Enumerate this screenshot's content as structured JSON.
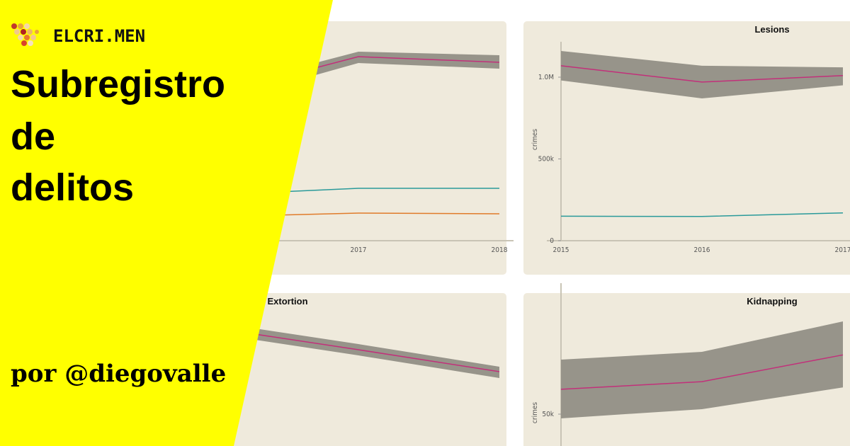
{
  "brand": "ELCRI.MEN",
  "title_lines": [
    "Subregistro",
    "de",
    "delitos"
  ],
  "author": "por @diegovalle",
  "chart_data": [
    {
      "type": "line",
      "categories": [
        null,
        "2017",
        "2018"
      ],
      "ylim": [
        0,
        300
      ],
      "yticks": [],
      "band": {
        "color": "#97948a",
        "upper": [
          215,
          267,
          262
        ],
        "lower": [
          195,
          251,
          243
        ]
      },
      "series": [
        {
          "color": "#c2307a",
          "values": [
            208,
            260,
            252
          ]
        },
        {
          "color": "#2a9a9a",
          "values": [
            65,
            74,
            74
          ]
        },
        {
          "color": "#e07b2a",
          "values": [
            34,
            39,
            38
          ]
        }
      ]
    },
    {
      "type": "line",
      "title": "Lesions",
      "ylabel": "crimes",
      "categories": [
        "2015",
        "2016",
        "2017"
      ],
      "ylim": [
        0,
        1000000
      ],
      "yticks": [
        0,
        {
          "value": 500000,
          "label": "500k"
        },
        {
          "value": 1000000,
          "label": "1.0M"
        }
      ],
      "band": {
        "color": "#97948a",
        "upper": [
          1160000,
          1070000,
          1060000
        ],
        "lower": [
          980000,
          870000,
          950000
        ]
      },
      "series": [
        {
          "color": "#c2307a",
          "values": [
            1070000,
            970000,
            1010000
          ]
        },
        {
          "color": "#2a9a9a",
          "values": [
            150000,
            148000,
            170000
          ]
        }
      ]
    },
    {
      "type": "line",
      "title": "Extortion",
      "categories": [
        null,
        null,
        null
      ],
      "ylim": [
        0,
        100
      ],
      "yticks": [],
      "band": {
        "color": "#97948a",
        "upper": [
          92,
          77,
          61
        ],
        "lower": [
          84,
          69,
          53
        ]
      },
      "series": [
        {
          "color": "#c2307a",
          "values": [
            88,
            73,
            57.5
          ]
        }
      ]
    },
    {
      "type": "line",
      "title": "Kidnapping",
      "ylabel": "crimes",
      "categories": [
        null,
        null,
        null
      ],
      "ylim": [
        0,
        100000
      ],
      "yticks": [
        {
          "value": 50000,
          "label": "50k"
        }
      ],
      "band": {
        "color": "#97948a",
        "upper": [
          78500,
          82600,
          98500
        ],
        "lower": [
          47800,
          52600,
          64000
        ]
      },
      "series": [
        {
          "color": "#c2307a",
          "values": [
            63000,
            67000,
            81000
          ]
        }
      ]
    }
  ]
}
